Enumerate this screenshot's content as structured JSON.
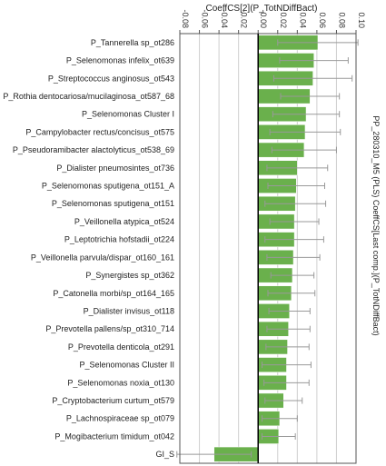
{
  "chart_data": {
    "type": "bar",
    "orientation": "horizontal",
    "title": "CoeffCS[2](P_TotNDiffBact)",
    "side_label": "PP_280310_M5 (PLS) CoeffCS[Last comp.](P_TotNDiffBact)",
    "xlim": [
      -0.08,
      0.1
    ],
    "x_ticks": [
      "-0.08",
      "-0.06",
      "-0.04",
      "-0.02",
      "-0.00",
      "0.02",
      "0.04",
      "0.06",
      "0.08",
      "0.10"
    ],
    "x_tick_values": [
      -0.08,
      -0.06,
      -0.04,
      -0.02,
      0,
      0.02,
      0.04,
      0.06,
      0.08,
      0.1
    ],
    "grid": true,
    "bar_color": "#6ab04c",
    "error_color": "#999999",
    "categories": [
      "P_Tannerella sp_ot286",
      "P_Selenomonas infelix_ot639",
      "P_Streptococcus anginosus_ot543",
      "P_Rothia dentocariosa/mucilaginosa_ot587_68",
      "P_Selenomonas Cluster I",
      "P_Campylobacter rectus/concisus_ot575",
      "P_Pseudoramibacter alactolyticus_ot538_69",
      "P_Dialister pneumosintes_ot736",
      "P_Selenomonas sputigena_ot151_A",
      "P_Selenomonas sputigena_ot151",
      "P_Veillonella atypica_ot524",
      "P_Leptotrichia hofstadii_ot224",
      "P_Veillonella parvula/dispar_ot160_161",
      "P_Synergistes sp_ot362",
      "P_Catonella morbi/sp_ot164_165",
      "P_Dialister invisus_ot118",
      "P_Prevotella pallens/sp_ot310_714",
      "P_Prevotella denticola_ot291",
      "P_Selenomonas Cluster II",
      "P_Selenomonas noxia_ot130",
      "P_Cryptobacterium curtum_ot579",
      "P_Lachnospiraceae sp_ot079",
      "P_Mogibacterium timidum_ot042",
      "GI_S"
    ],
    "values": [
      0.061,
      0.057,
      0.056,
      0.053,
      0.049,
      0.048,
      0.047,
      0.04,
      0.039,
      0.038,
      0.037,
      0.037,
      0.036,
      0.035,
      0.034,
      0.032,
      0.031,
      0.03,
      0.029,
      0.029,
      0.026,
      0.022,
      0.021,
      -0.045
    ],
    "errors": [
      0.041,
      0.035,
      0.04,
      0.03,
      0.034,
      0.036,
      0.033,
      0.031,
      0.029,
      0.031,
      0.025,
      0.03,
      0.027,
      0.022,
      0.024,
      0.021,
      0.022,
      0.022,
      0.025,
      0.023,
      0.019,
      0.018,
      0.017,
      0.038
    ]
  }
}
